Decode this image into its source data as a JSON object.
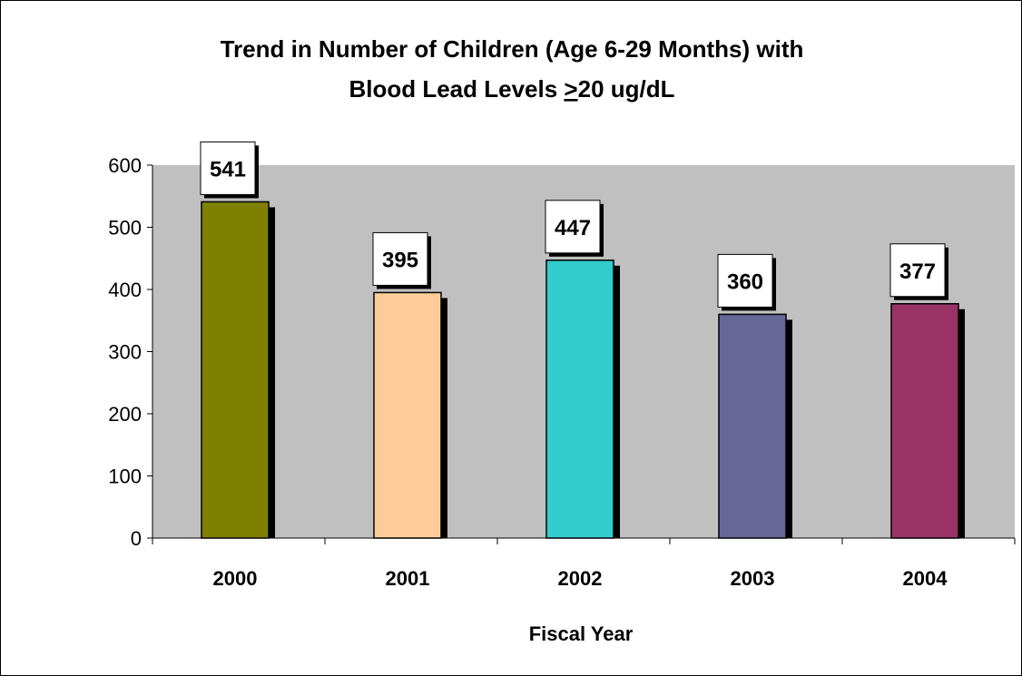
{
  "chart_data": {
    "type": "bar",
    "title_line1": "Trend in Number of Children (Age 6-29 Months) with",
    "title_line2_prefix": "Blood Lead Levels  ",
    "title_line2_ge": ">",
    "title_line2_suffix": "20 ug/dL",
    "xlabel": "Fiscal Year",
    "ylabel": "",
    "categories": [
      "2000",
      "2001",
      "2002",
      "2003",
      "2004"
    ],
    "values": [
      541,
      395,
      447,
      360,
      377
    ],
    "colors": [
      "#808000",
      "#FFCC99",
      "#33CCCC",
      "#666699",
      "#993366"
    ],
    "ylim": [
      0,
      600
    ],
    "yticks": [
      "0",
      "100",
      "200",
      "300",
      "400",
      "500",
      "600"
    ],
    "plot_background": "#C0C0C0",
    "grid": false,
    "legend": "none"
  }
}
